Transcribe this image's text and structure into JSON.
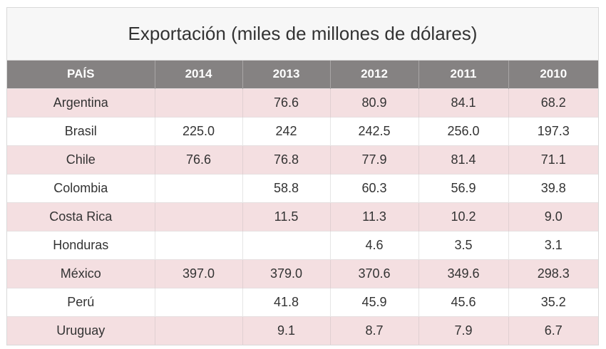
{
  "table": {
    "caption": "Exportación (miles de millones de dólares)",
    "headers": [
      "PAÍS",
      "2014",
      "2013",
      "2012",
      "2011",
      "2010"
    ],
    "rows": [
      [
        "Argentina",
        "",
        "76.6",
        "80.9",
        "84.1",
        "68.2"
      ],
      [
        "Brasil",
        "225.0",
        "242",
        "242.5",
        "256.0",
        "197.3"
      ],
      [
        "Chile",
        "76.6",
        "76.8",
        "77.9",
        "81.4",
        "71.1"
      ],
      [
        "Colombia",
        "",
        "58.8",
        "60.3",
        "56.9",
        "39.8"
      ],
      [
        "Costa Rica",
        "",
        "11.5",
        "11.3",
        "10.2",
        "9.0"
      ],
      [
        "Honduras",
        "",
        "",
        "4.6",
        "3.5",
        "3.1"
      ],
      [
        "México",
        "397.0",
        "379.0",
        "370.6",
        "349.6",
        "298.3"
      ],
      [
        "Perú",
        "",
        "41.8",
        "45.9",
        "45.6",
        "35.2"
      ],
      [
        "Uruguay",
        "",
        "9.1",
        "8.7",
        "7.9",
        "6.7"
      ]
    ]
  },
  "colors": {
    "header_bg": "#858282",
    "stripe_bg": "#f4dfe1",
    "caption_bg": "#f7f7f7"
  }
}
